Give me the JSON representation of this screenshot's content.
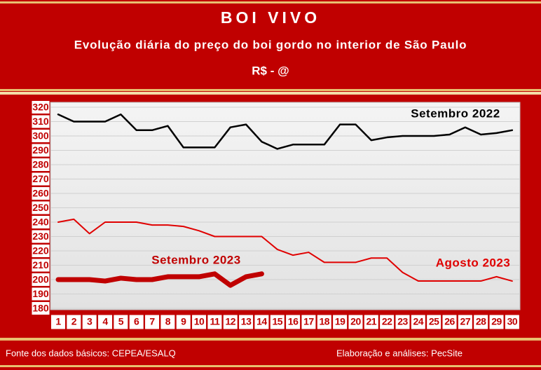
{
  "chart_data": {
    "type": "line",
    "title": "BOI VIVO",
    "subtitle": "Evolução diária do preço do boi gordo no interior de São Paulo",
    "y_label": "R$ - @",
    "categories": [
      1,
      2,
      3,
      4,
      5,
      6,
      7,
      8,
      9,
      10,
      11,
      12,
      13,
      14,
      15,
      16,
      17,
      18,
      19,
      20,
      21,
      22,
      23,
      24,
      25,
      26,
      27,
      28,
      29,
      30
    ],
    "series": [
      {
        "name": "Setembro 2022",
        "color": "#000000",
        "width": 2.5,
        "values": [
          315,
          310,
          310,
          310,
          315,
          304,
          304,
          307,
          292,
          292,
          292,
          306,
          308,
          296,
          291,
          294,
          294,
          294,
          308,
          308,
          297,
          299,
          300,
          300,
          300,
          301,
          306,
          301,
          302,
          304
        ]
      },
      {
        "name": "Agosto 2023",
        "color": "#e00000",
        "width": 2,
        "values": [
          240,
          242,
          232,
          240,
          240,
          240,
          238,
          238,
          237,
          234,
          230,
          230,
          230,
          230,
          221,
          217,
          219,
          212,
          212,
          212,
          215,
          215,
          205,
          199,
          199,
          199,
          199,
          199,
          202,
          199
        ]
      },
      {
        "name": "Setembro 2023",
        "color": "#c00000",
        "width": 7,
        "values": [
          200,
          200,
          200,
          199,
          201,
          200,
          200,
          202,
          202,
          202,
          204,
          196,
          202,
          204,
          null,
          null,
          null,
          null,
          null,
          null,
          null,
          null,
          null,
          null,
          null,
          null,
          null,
          null,
          null,
          null
        ]
      }
    ],
    "ylim": [
      180,
      320
    ],
    "yticks": [
      180,
      190,
      200,
      210,
      220,
      230,
      240,
      250,
      260,
      270,
      280,
      290,
      300,
      310,
      320
    ],
    "grid": true,
    "source": "Fonte dos dados básicos: CEPEA/ESALQ",
    "credit": "Elaboração e análises: PecSite"
  }
}
